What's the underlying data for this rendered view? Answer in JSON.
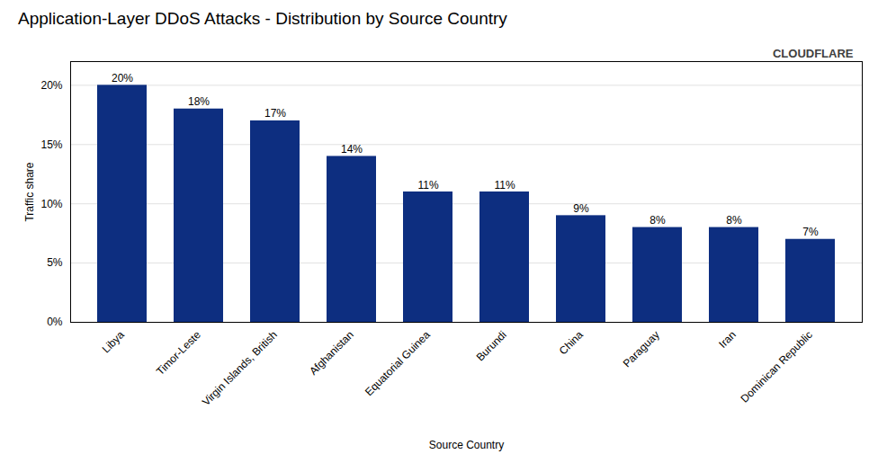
{
  "chart_data": {
    "type": "bar",
    "title": "Application-Layer DDoS Attacks - Distribution by Source Country",
    "xlabel": "Source Country",
    "ylabel": "Traffic share",
    "categories": [
      "Libya",
      "Timor-Leste",
      "Virgin Islands, British",
      "Afghanistan",
      "Equatorial Guinea",
      "Burundi",
      "China",
      "Paraguay",
      "Iran",
      "Dominican Republic"
    ],
    "values": [
      20,
      18,
      17,
      14,
      11,
      11,
      9,
      8,
      8,
      7
    ],
    "value_labels": [
      "20%",
      "18%",
      "17%",
      "14%",
      "11%",
      "11%",
      "9%",
      "8%",
      "8%",
      "7%"
    ],
    "data_labels": true,
    "color": "#0d2e80",
    "ylim": [
      0,
      22
    ],
    "yticks": [
      {
        "value": 0,
        "label": "0%"
      },
      {
        "value": 5,
        "label": "5%"
      },
      {
        "value": 10,
        "label": "10%"
      },
      {
        "value": 15,
        "label": "15%"
      },
      {
        "value": 20,
        "label": "20%"
      }
    ],
    "grid": true,
    "annotations": [
      "CLOUDFLARE"
    ]
  }
}
